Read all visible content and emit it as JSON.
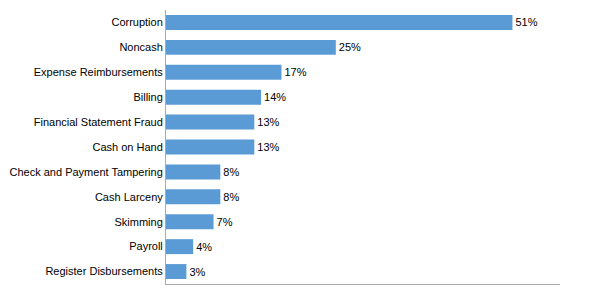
{
  "chart_data": {
    "type": "bar",
    "orientation": "horizontal",
    "categories": [
      "Register Disbursements",
      "Payroll",
      "Skimming",
      "Cash Larceny",
      "Check and Payment Tampering",
      "Cash on Hand",
      "Financial Statement Fraud",
      "Billing",
      "Expense Reimbursements",
      "Noncash",
      "Corruption"
    ],
    "values": [
      3,
      4,
      7,
      8,
      8,
      13,
      13,
      14,
      17,
      25,
      51
    ],
    "value_labels": [
      "3%",
      "4%",
      "7%",
      "8%",
      "8%",
      "13%",
      "13%",
      "14%",
      "17%",
      "25%",
      "51%"
    ],
    "data_labels": true,
    "color": "#5B9BD5",
    "xlim": [
      0,
      58
    ],
    "tick_labels": "y",
    "grid": false
  }
}
